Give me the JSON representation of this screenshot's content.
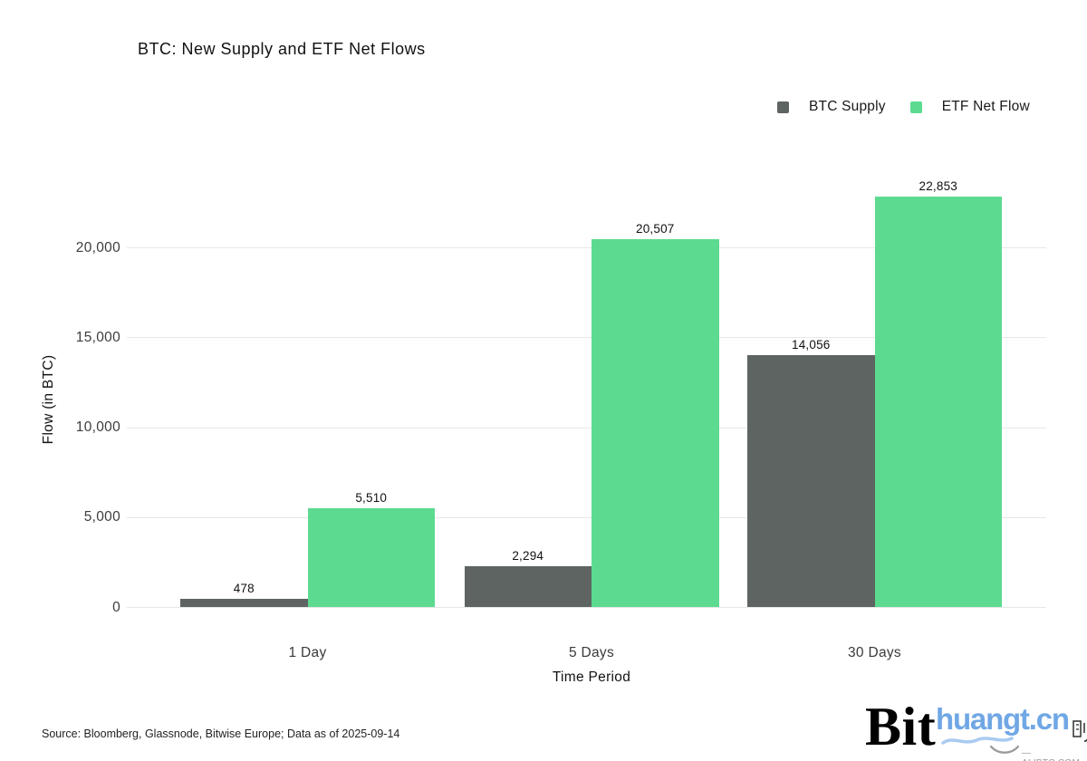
{
  "title": "BTC: New Supply and ETF Net Flows",
  "source_note": "Source: Bloomberg, Glassnode, Bitwise Europe; Data as of 2025-09-14",
  "logo_text": "Bit",
  "watermark": {
    "site": "huangt.cn",
    "subtext": "—ALIBTC.COM—",
    "color": "#70A7E5"
  },
  "chart_data": {
    "type": "bar",
    "title": "BTC: New Supply and ETF Net Flows",
    "categories": [
      "1 Day",
      "5 Days",
      "30 Days"
    ],
    "series": [
      {
        "name": "BTC Supply",
        "color": "#5E6462",
        "values": [
          478,
          2294,
          14056
        ]
      },
      {
        "name": "ETF Net Flow",
        "color": "#5CDB90",
        "values": [
          5510,
          20507,
          22853
        ]
      }
    ],
    "xlabel": "Time Period",
    "ylabel": "Flow (in BTC)",
    "ylim": [
      0,
      24000
    ],
    "yticks": [
      0,
      5000,
      10000,
      15000,
      20000
    ],
    "grid": true,
    "legend_position": "top-right",
    "value_labels": true
  }
}
